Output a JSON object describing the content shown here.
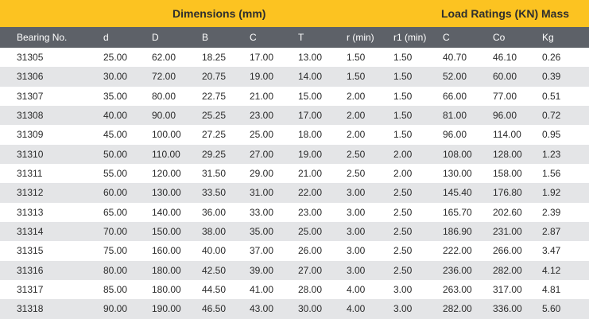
{
  "title_bar": {
    "dimensions_label": "Dimensions (mm)",
    "load_ratings_label": "Load Ratings (KN)",
    "mass_label": "Mass"
  },
  "columns": [
    "Bearing No.",
    "d",
    "D",
    "B",
    "C",
    "T",
    "r (min)",
    "r1 (min)",
    "C",
    "Co",
    "Kg"
  ],
  "rows": [
    [
      "31305",
      "25.00",
      "62.00",
      "18.25",
      "17.00",
      "13.00",
      "1.50",
      "1.50",
      "40.70",
      "46.10",
      "0.26"
    ],
    [
      "31306",
      "30.00",
      "72.00",
      "20.75",
      "19.00",
      "14.00",
      "1.50",
      "1.50",
      "52.00",
      "60.00",
      "0.39"
    ],
    [
      "31307",
      "35.00",
      "80.00",
      "22.75",
      "21.00",
      "15.00",
      "2.00",
      "1.50",
      "66.00",
      "77.00",
      "0.51"
    ],
    [
      "31308",
      "40.00",
      "90.00",
      "25.25",
      "23.00",
      "17.00",
      "2.00",
      "1.50",
      "81.00",
      "96.00",
      "0.72"
    ],
    [
      "31309",
      "45.00",
      "100.00",
      "27.25",
      "25.00",
      "18.00",
      "2.00",
      "1.50",
      "96.00",
      "114.00",
      "0.95"
    ],
    [
      "31310",
      "50.00",
      "110.00",
      "29.25",
      "27.00",
      "19.00",
      "2.50",
      "2.00",
      "108.00",
      "128.00",
      "1.23"
    ],
    [
      "31311",
      "55.00",
      "120.00",
      "31.50",
      "29.00",
      "21.00",
      "2.50",
      "2.00",
      "130.00",
      "158.00",
      "1.56"
    ],
    [
      "31312",
      "60.00",
      "130.00",
      "33.50",
      "31.00",
      "22.00",
      "3.00",
      "2.50",
      "145.40",
      "176.80",
      "1.92"
    ],
    [
      "31313",
      "65.00",
      "140.00",
      "36.00",
      "33.00",
      "23.00",
      "3.00",
      "2.50",
      "165.70",
      "202.60",
      "2.39"
    ],
    [
      "31314",
      "70.00",
      "150.00",
      "38.00",
      "35.00",
      "25.00",
      "3.00",
      "2.50",
      "186.90",
      "231.00",
      "2.87"
    ],
    [
      "31315",
      "75.00",
      "160.00",
      "40.00",
      "37.00",
      "26.00",
      "3.00",
      "2.50",
      "222.00",
      "266.00",
      "3.47"
    ],
    [
      "31316",
      "80.00",
      "180.00",
      "42.50",
      "39.00",
      "27.00",
      "3.00",
      "2.50",
      "236.00",
      "282.00",
      "4.12"
    ],
    [
      "31317",
      "85.00",
      "180.00",
      "44.50",
      "41.00",
      "28.00",
      "4.00",
      "3.00",
      "263.00",
      "317.00",
      "4.81"
    ],
    [
      "31318",
      "90.00",
      "190.00",
      "46.50",
      "43.00",
      "30.00",
      "4.00",
      "3.00",
      "282.00",
      "336.00",
      "5.60"
    ]
  ],
  "colors": {
    "title_bar_bg": "#fcc321",
    "header_bg": "#5d6168",
    "alt_row_bg": "#e4e5e7"
  }
}
